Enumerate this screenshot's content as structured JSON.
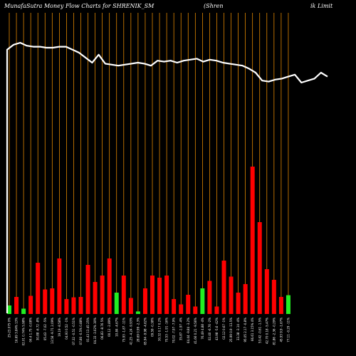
{
  "chart_data": {
    "type": "bar",
    "title_left": "MunafaSutra  Money Flow  Charts for SHRENIK_SM",
    "title_mid": "(Shren",
    "title_right": "ik Limit",
    "ylim": [
      0,
      100
    ],
    "price_range": [
      0,
      100
    ],
    "colors": {
      "background": "#000000",
      "vline": "#ff9900",
      "up": "#22ee22",
      "down": "#ff0000",
      "line": "#ffffff",
      "text": "#ffffff"
    },
    "categories": [
      "25-23.075 0%",
      "16.69 3.84% 13%",
      "02.01 0.74% 5.98%",
      "04.4 1.75 -0.08%",
      "30.88 -6.72 -8%",
      "05.43 -7.02 -5%",
      "13.58 -9.71 2.09%",
      "19.19 -8.58%",
      "04.93 0.52 -1%",
      "07.32 -0.51 -0.51%",
      "07.80 -0.5% 0.88%",
      "01.43 13.45 25%",
      "04.33 -3.02% 30%",
      "06.83 -8.76 5%",
      "00.12 -2.89%",
      "10.84 -4.67%",
      "75.93 -1.87 -11%",
      "41.25 -4.24 -9.93%",
      "28.69 0.99 -2.3%",
      "65.94 -9.98 -4.62%",
      "09.59 -0.38%",
      "30.32 0.17 0.2%",
      "70.53 -1.91 -16%",
      "70.02 -7.97 -7.9%",
      "35.87 -1.97 -4%",
      "64.44 -9.84 -3.2%",
      "41.66 0.21 -9.56%",
      "76.49 4.88 -4%",
      "02.40 -6.76 -2%",
      "43.98 -5.6 -42%",
      "02.12 0.67 -1%",
      "25.99 0.9 -13.5%",
      "33.38 -3.14 -4%",
      "95.05 2.17 -0.8%",
      "66.61 3.15% 4%",
      "53.42 -0.61 -1.5%",
      "42.70 0.18 -5.47%",
      "81.86 -2.36 -0.29%",
      "45.93 9.9 -1.67%",
      "77.11 -0.29 -11%"
    ],
    "values": [
      4,
      8,
      2.5,
      8.5,
      24,
      11.5,
      12,
      26,
      7,
      7.8,
      8,
      23,
      15,
      18,
      26,
      10,
      18,
      7.5,
      1.2,
      12,
      18,
      17,
      18,
      7,
      4.5,
      9,
      3.5,
      12,
      15.5,
      3.5,
      25,
      17.5,
      10,
      14,
      69,
      43,
      21,
      16,
      8,
      8.8
    ],
    "directions": [
      "up",
      "down",
      "up",
      "down",
      "down",
      "down",
      "down",
      "down",
      "down",
      "down",
      "down",
      "down",
      "down",
      "down",
      "down",
      "up",
      "down",
      "down",
      "up",
      "down",
      "down",
      "down",
      "down",
      "down",
      "down",
      "down",
      "down",
      "up",
      "down",
      "down",
      "down",
      "down",
      "down",
      "down",
      "down",
      "down",
      "down",
      "down",
      "down",
      "up"
    ],
    "price": [
      93,
      98,
      100,
      97,
      96,
      96,
      95,
      95,
      96,
      96,
      93,
      90,
      85,
      80,
      88,
      79,
      78,
      77,
      78,
      79,
      80,
      79,
      77,
      82,
      81,
      82,
      80,
      82,
      83,
      84,
      81,
      83,
      82,
      80,
      79,
      78,
      77,
      74,
      70,
      62,
      61,
      63,
      64,
      66,
      68,
      60,
      62,
      64,
      70,
      66
    ]
  }
}
